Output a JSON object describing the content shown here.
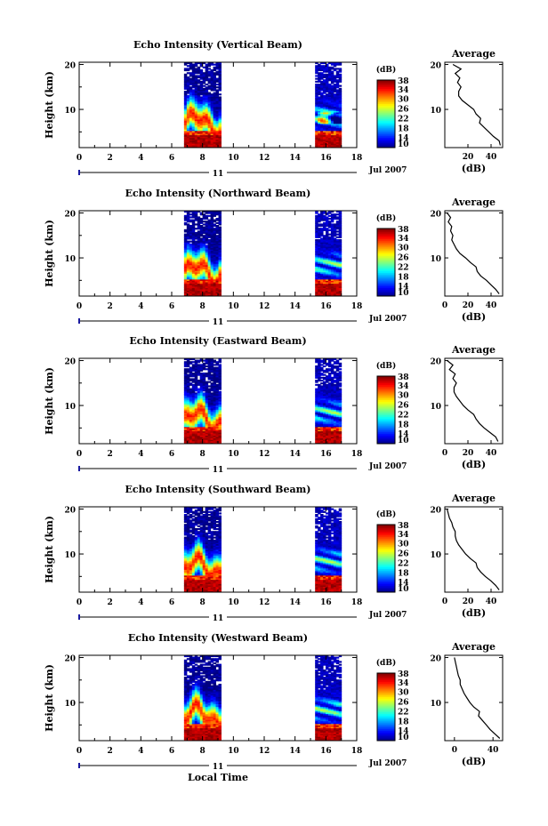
{
  "figure": {
    "xlabel": "Local Time",
    "date_label": "Jul 2007",
    "day_label": "11",
    "ylabel": "Height (km)",
    "cbar_unit": "(dB)",
    "avg_title": "Average",
    "avg_xlabel": "(dB)"
  },
  "chart_data": [
    {
      "type": "heatmap",
      "title": "Echo Intensity (Vertical Beam)",
      "xlabel": "Local Time",
      "ylabel": "Height (km)",
      "xlim": [
        0,
        18
      ],
      "ylim": [
        1.5,
        20.5
      ],
      "x_ticks": [
        "0",
        "2",
        "4",
        "6",
        "8",
        "10",
        "12",
        "14",
        "16",
        "18"
      ],
      "y_ticks": [
        "10",
        "20"
      ],
      "data_blocks": [
        [
          6.8,
          9.2
        ],
        [
          15.3,
          17.0
        ]
      ],
      "colorbar": {
        "unit": "(dB)",
        "range": [
          10,
          38
        ],
        "ticks": [
          "10",
          "14",
          "18",
          "22",
          "26",
          "30",
          "34",
          "38"
        ]
      },
      "average_profile": {
        "title": "Average",
        "xlabel": "(dB)",
        "x_ticks": [
          "20",
          "40"
        ],
        "xlim": [
          0,
          50
        ],
        "y_ticks": [
          "10",
          "20"
        ],
        "ylim": [
          1.5,
          20.5
        ],
        "height_km": [
          2,
          3,
          4,
          5,
          6,
          7,
          8,
          9,
          10,
          11,
          12,
          13,
          14,
          15,
          16,
          17,
          18,
          19,
          20
        ],
        "intensity_db": [
          48,
          47,
          42,
          38,
          34,
          30,
          31,
          27,
          25,
          20,
          15,
          12,
          12,
          14,
          11,
          13,
          9,
          14,
          7
        ]
      }
    },
    {
      "type": "heatmap",
      "title": "Echo Intensity (Northward Beam)",
      "xlabel": "Local Time",
      "ylabel": "Height (km)",
      "xlim": [
        0,
        18
      ],
      "ylim": [
        1.5,
        20.5
      ],
      "x_ticks": [
        "0",
        "2",
        "4",
        "6",
        "8",
        "10",
        "12",
        "14",
        "16",
        "18"
      ],
      "y_ticks": [
        "10",
        "20"
      ],
      "data_blocks": [
        [
          6.8,
          9.2
        ],
        [
          15.3,
          17.0
        ]
      ],
      "colorbar": {
        "unit": "(dB)",
        "range": [
          10,
          38
        ],
        "ticks": [
          "10",
          "14",
          "18",
          "22",
          "26",
          "30",
          "34",
          "38"
        ]
      },
      "average_profile": {
        "title": "Average",
        "xlabel": "(dB)",
        "x_ticks": [
          "0",
          "20",
          "40"
        ],
        "xlim": [
          0,
          50
        ],
        "y_ticks": [
          "10",
          "20"
        ],
        "ylim": [
          1.5,
          20.5
        ],
        "height_km": [
          2,
          3,
          4,
          5,
          6,
          7,
          8,
          9,
          10,
          11,
          12,
          13,
          14,
          15,
          16,
          17,
          18,
          19,
          20
        ],
        "intensity_db": [
          47,
          44,
          40,
          36,
          31,
          28,
          27,
          22,
          18,
          13,
          10,
          8,
          6,
          7,
          5,
          6,
          3,
          5,
          2
        ]
      }
    },
    {
      "type": "heatmap",
      "title": "Echo Intensity (Eastward Beam)",
      "xlabel": "Local Time",
      "ylabel": "Height (km)",
      "xlim": [
        0,
        18
      ],
      "ylim": [
        1.5,
        20.5
      ],
      "x_ticks": [
        "0",
        "2",
        "4",
        "6",
        "8",
        "10",
        "12",
        "14",
        "16",
        "18"
      ],
      "y_ticks": [
        "10",
        "20"
      ],
      "data_blocks": [
        [
          6.8,
          9.2
        ],
        [
          15.3,
          17.0
        ]
      ],
      "colorbar": {
        "unit": "(dB)",
        "range": [
          10,
          38
        ],
        "ticks": [
          "10",
          "14",
          "18",
          "22",
          "26",
          "30",
          "34",
          "38"
        ]
      },
      "average_profile": {
        "title": "Average",
        "xlabel": "(dB)",
        "x_ticks": [
          "0",
          "20",
          "40"
        ],
        "xlim": [
          0,
          50
        ],
        "y_ticks": [
          "10",
          "20"
        ],
        "ylim": [
          1.5,
          20.5
        ],
        "height_km": [
          2,
          3,
          4,
          5,
          6,
          7,
          8,
          9,
          10,
          11,
          12,
          13,
          14,
          15,
          16,
          17,
          18,
          19,
          20
        ],
        "intensity_db": [
          46,
          44,
          39,
          34,
          30,
          27,
          25,
          20,
          16,
          13,
          10,
          8,
          8,
          10,
          7,
          9,
          4,
          7,
          2
        ]
      }
    },
    {
      "type": "heatmap",
      "title": "Echo Intensity (Southward Beam)",
      "xlabel": "Local Time",
      "ylabel": "Height (km)",
      "xlim": [
        0,
        18
      ],
      "ylim": [
        1.5,
        20.5
      ],
      "x_ticks": [
        "0",
        "2",
        "4",
        "6",
        "8",
        "10",
        "12",
        "14",
        "16",
        "18"
      ],
      "y_ticks": [
        "10",
        "20"
      ],
      "data_blocks": [
        [
          6.8,
          9.2
        ],
        [
          15.3,
          17.0
        ]
      ],
      "colorbar": {
        "unit": "(dB)",
        "range": [
          10,
          38
        ],
        "ticks": [
          "10",
          "14",
          "18",
          "22",
          "26",
          "30",
          "34",
          "38"
        ]
      },
      "average_profile": {
        "title": "Average",
        "xlabel": "(dB)",
        "x_ticks": [
          "0",
          "20",
          "40"
        ],
        "xlim": [
          0,
          50
        ],
        "y_ticks": [
          "10",
          "20"
        ],
        "ylim": [
          1.5,
          20.5
        ],
        "height_km": [
          2,
          3,
          4,
          5,
          6,
          7,
          8,
          9,
          10,
          11,
          12,
          13,
          14,
          15,
          16,
          17,
          18,
          19,
          20
        ],
        "intensity_db": [
          47,
          44,
          40,
          35,
          31,
          28,
          27,
          22,
          18,
          15,
          12,
          10,
          9,
          9,
          7,
          6,
          4,
          3,
          2
        ]
      }
    },
    {
      "type": "heatmap",
      "title": "Echo Intensity (Westward Beam)",
      "xlabel": "Local Time",
      "ylabel": "Height (km)",
      "xlim": [
        0,
        18
      ],
      "ylim": [
        1.5,
        20.5
      ],
      "x_ticks": [
        "0",
        "2",
        "4",
        "6",
        "8",
        "10",
        "12",
        "14",
        "16",
        "18"
      ],
      "y_ticks": [
        "10",
        "20"
      ],
      "data_blocks": [
        [
          6.8,
          9.2
        ],
        [
          15.3,
          17.0
        ]
      ],
      "colorbar": {
        "unit": "(dB)",
        "range": [
          10,
          38
        ],
        "ticks": [
          "10",
          "14",
          "18",
          "22",
          "26",
          "30",
          "34",
          "38"
        ]
      },
      "average_profile": {
        "title": "Average",
        "xlabel": "(dB)",
        "x_ticks": [
          "0",
          "40"
        ],
        "xlim": [
          -10,
          50
        ],
        "y_ticks": [
          "10",
          "20"
        ],
        "ylim": [
          1.5,
          20.5
        ],
        "height_km": [
          2,
          3,
          4,
          5,
          6,
          7,
          8,
          9,
          10,
          11,
          12,
          13,
          14,
          15,
          16,
          17,
          18,
          19,
          20
        ],
        "intensity_db": [
          47,
          42,
          37,
          33,
          29,
          25,
          26,
          20,
          16,
          13,
          10,
          8,
          6,
          6,
          4,
          3,
          2,
          1,
          0
        ]
      }
    }
  ]
}
